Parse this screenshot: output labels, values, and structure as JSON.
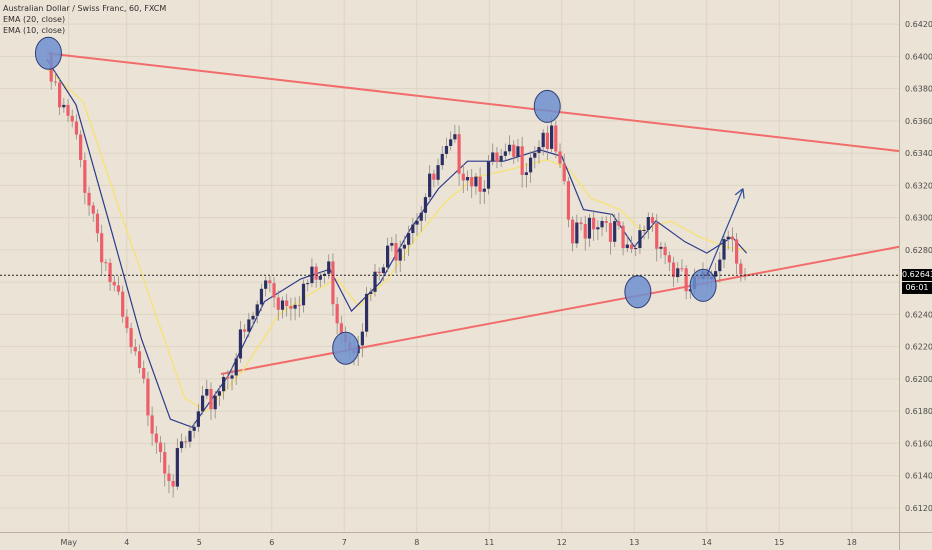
{
  "legend": {
    "symbol": "Australian Dollar / Swiss Franc, 60, FXCM",
    "ema20": "EMA (20, close)",
    "ema10": "EMA (10, close)"
  },
  "colors": {
    "background": "#ebe3d5",
    "up_candle": "#2b2f63",
    "down_candle": "#ec5e6a",
    "ema_short": "#2c3a8c",
    "ema_long": "#f6e27a",
    "trendline": "#f26c6c",
    "marker_fill": "#6f8fd0",
    "arrow": "#2d4a9a",
    "price_box": "#000000"
  },
  "chart_data": {
    "type": "candlestick",
    "title": "Australian Dollar / Swiss Franc, 60, FXCM",
    "y_range": [
      0.6105,
      0.6435
    ],
    "y_ticks": [
      0.612,
      0.614,
      0.616,
      0.618,
      0.62,
      0.622,
      0.624,
      0.626,
      0.628,
      0.63,
      0.632,
      0.634,
      0.636,
      0.638,
      0.64,
      0.642
    ],
    "x_ticks": [
      "May",
      "4",
      "5",
      "6",
      "7",
      "8",
      "11",
      "12",
      "13",
      "14",
      "15",
      "18"
    ],
    "x_tick_positions": [
      0.3,
      1.1,
      2.1,
      3.1,
      4.1,
      5.1,
      6.1,
      7.1,
      8.1,
      9.1,
      10.1,
      11.1
    ],
    "current_price": "0.62643",
    "countdown": "06:01",
    "grid": true,
    "trendlines": [
      {
        "name": "upper",
        "points": [
          [
            0.0,
            0.6402
          ],
          [
            12.0,
            0.634
          ]
        ]
      },
      {
        "name": "lower",
        "points": [
          [
            2.4,
            0.6203
          ],
          [
            12.0,
            0.6284
          ]
        ]
      }
    ],
    "markers": [
      {
        "x": 0.02,
        "y": 0.6402
      },
      {
        "x": 4.12,
        "y": 0.6219
      },
      {
        "x": 6.9,
        "y": 0.6369
      },
      {
        "x": 8.15,
        "y": 0.6254
      },
      {
        "x": 9.05,
        "y": 0.6258
      }
    ],
    "projection_arrow": [
      [
        9.1,
        0.6264
      ],
      [
        9.6,
        0.6318
      ]
    ],
    "price_path": [
      [
        0.0,
        0.6402
      ],
      [
        0.12,
        0.6378
      ],
      [
        0.35,
        0.636
      ],
      [
        0.8,
        0.628
      ],
      [
        1.1,
        0.623
      ],
      [
        1.6,
        0.6162
      ],
      [
        1.75,
        0.6145
      ],
      [
        1.85,
        0.6158
      ],
      [
        2.1,
        0.618
      ],
      [
        2.4,
        0.6205
      ],
      [
        2.8,
        0.6238
      ],
      [
        3.05,
        0.627
      ],
      [
        3.2,
        0.6255
      ],
      [
        3.5,
        0.6262
      ],
      [
        3.9,
        0.6272
      ],
      [
        4.0,
        0.6248
      ],
      [
        4.2,
        0.6228
      ],
      [
        4.5,
        0.6262
      ],
      [
        4.9,
        0.6298
      ],
      [
        5.3,
        0.6325
      ],
      [
        5.6,
        0.6348
      ],
      [
        5.9,
        0.6332
      ],
      [
        6.3,
        0.6338
      ],
      [
        6.6,
        0.6345
      ],
      [
        6.85,
        0.636
      ],
      [
        7.0,
        0.6348
      ],
      [
        7.25,
        0.629
      ],
      [
        7.5,
        0.6308
      ],
      [
        7.75,
        0.6305
      ],
      [
        8.05,
        0.6275
      ],
      [
        8.3,
        0.631
      ],
      [
        8.55,
        0.6282
      ],
      [
        8.8,
        0.626
      ],
      [
        9.05,
        0.6262
      ],
      [
        9.25,
        0.6285
      ],
      [
        9.45,
        0.6305
      ],
      [
        9.55,
        0.627
      ],
      [
        9.65,
        0.6264
      ]
    ],
    "ema10_path": [
      [
        0.0,
        0.6398
      ],
      [
        0.4,
        0.637
      ],
      [
        0.9,
        0.629
      ],
      [
        1.3,
        0.6225
      ],
      [
        1.7,
        0.6175
      ],
      [
        2.0,
        0.617
      ],
      [
        2.5,
        0.6202
      ],
      [
        3.0,
        0.6248
      ],
      [
        3.5,
        0.6262
      ],
      [
        3.9,
        0.6268
      ],
      [
        4.2,
        0.6242
      ],
      [
        4.6,
        0.626
      ],
      [
        5.0,
        0.6292
      ],
      [
        5.4,
        0.6318
      ],
      [
        5.8,
        0.6335
      ],
      [
        6.3,
        0.6335
      ],
      [
        6.8,
        0.6342
      ],
      [
        7.1,
        0.6338
      ],
      [
        7.4,
        0.6305
      ],
      [
        7.8,
        0.6302
      ],
      [
        8.1,
        0.6282
      ],
      [
        8.4,
        0.6298
      ],
      [
        8.8,
        0.6285
      ],
      [
        9.1,
        0.6278
      ],
      [
        9.45,
        0.6288
      ],
      [
        9.65,
        0.6278
      ]
    ],
    "ema20_path": [
      [
        0.0,
        0.6392
      ],
      [
        0.5,
        0.6372
      ],
      [
        1.0,
        0.6305
      ],
      [
        1.5,
        0.624
      ],
      [
        1.9,
        0.6188
      ],
      [
        2.2,
        0.618
      ],
      [
        2.7,
        0.6205
      ],
      [
        3.2,
        0.624
      ],
      [
        3.6,
        0.6252
      ],
      [
        4.0,
        0.6262
      ],
      [
        4.3,
        0.6245
      ],
      [
        4.7,
        0.6262
      ],
      [
        5.1,
        0.6288
      ],
      [
        5.5,
        0.631
      ],
      [
        5.9,
        0.6325
      ],
      [
        6.4,
        0.633
      ],
      [
        6.9,
        0.6336
      ],
      [
        7.2,
        0.633
      ],
      [
        7.5,
        0.6312
      ],
      [
        7.9,
        0.6305
      ],
      [
        8.2,
        0.6292
      ],
      [
        8.6,
        0.6298
      ],
      [
        9.0,
        0.6288
      ],
      [
        9.35,
        0.6282
      ],
      [
        9.65,
        0.628
      ]
    ]
  }
}
